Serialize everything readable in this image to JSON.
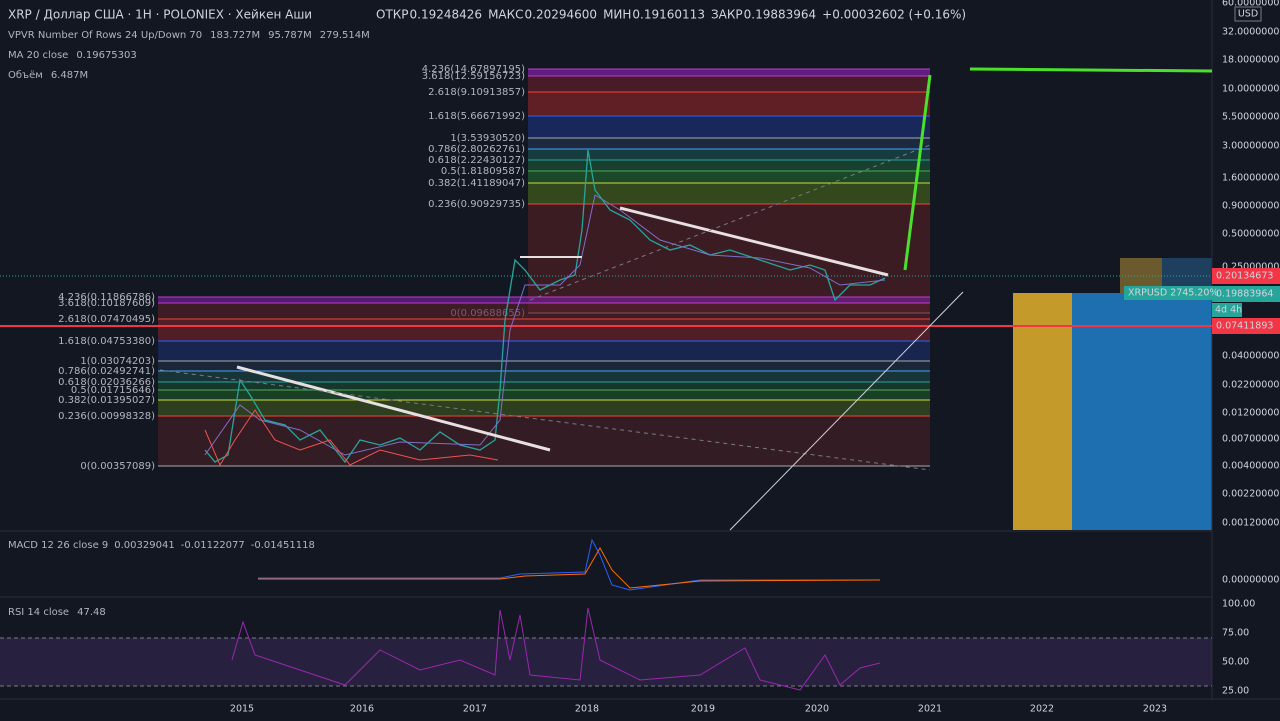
{
  "header": {
    "symbol": "XRP / Доллар США · 1H · POLONIEX · Хейкен Аши",
    "ohlc": [
      {
        "label": "ОТКР",
        "value": "0.19248426"
      },
      {
        "label": "МАКС",
        "value": "0.20294600"
      },
      {
        "label": "МИН",
        "value": "0.19160113"
      },
      {
        "label": "ЗАКР",
        "value": "0.19883964"
      }
    ],
    "change": "+0.00032602 (+0.16%)"
  },
  "indicators": [
    {
      "name": "VPVR Number Of Rows 24 Up/Down 70",
      "values": [
        "183.727M",
        "95.787M",
        "279.514M"
      ]
    },
    {
      "name": "MA 20 close",
      "values": [
        "0.19675303"
      ]
    },
    {
      "name": "Объём",
      "values": [
        "6.487M"
      ]
    }
  ],
  "price_axis": {
    "unit": "USD",
    "labels": [
      "60.00000000",
      "32.00000000",
      "18.00000000",
      "10.00000000",
      "5.50000000",
      "3.00000000",
      "1.60000000",
      "0.90000000",
      "0.50000000",
      "0.25000000",
      "0.04000000",
      "0.02200000",
      "0.01200000",
      "0.00700000",
      "0.00400000",
      "0.00220000",
      "0.00120000"
    ]
  },
  "price_tags": [
    "0.20134673",
    "0.19883964",
    "0.07411893"
  ],
  "symbol_tag": "XRPUSD 2745.20%",
  "countdown": "4d 4h",
  "fib_upper": [
    "4.236(14.67897195)",
    "3.618(12.59156723)",
    "2.618(9.10913857)",
    "1.618(5.66671992)",
    "1(3.53930520)",
    "0.786(2.80262761)",
    "0.618(2.22430127)",
    "0.5(1.81809587)",
    "0.382(1.41189047)",
    "0.236(0.90929735)",
    "0(0.09688655)"
  ],
  "fib_lower": [
    "4.236(0.11866786)",
    "3.618(0.10187609)",
    "2.618(0.07470495)",
    "1.618(0.04753380)",
    "1(0.03074203)",
    "0.786(0.02492741)",
    "0.618(0.02036266)",
    "0.5(0.01715646)",
    "0.382(0.01395027)",
    "0.236(0.00998328)",
    "0(0.00357089)"
  ],
  "time_axis": [
    "2015",
    "2016",
    "2017",
    "2018",
    "2019",
    "2020",
    "2021",
    "2022",
    "2023"
  ],
  "macd": {
    "title": "MACD 12 26 close 9",
    "values": [
      "0.00329041",
      "-0.01122077",
      "-0.01451118"
    ],
    "axis": "0.00000000"
  },
  "rsi": {
    "title": "RSI 14 close",
    "value": "47.48",
    "axis": [
      "100.00",
      "75.00",
      "50.00",
      "25.00"
    ]
  }
}
